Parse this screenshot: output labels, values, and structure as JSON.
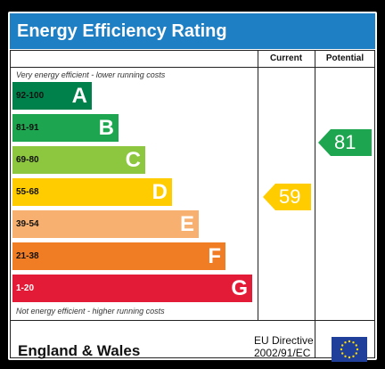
{
  "title": "Energy Efficiency Rating",
  "columns": {
    "current": "Current",
    "potential": "Potential"
  },
  "top_note": "Very energy efficient - lower running costs",
  "bottom_note": "Not energy efficient - higher running costs",
  "bands": [
    {
      "range": "92-100",
      "letter": "A",
      "color": "#00804a"
    },
    {
      "range": "81-91",
      "letter": "B",
      "color": "#1da54f"
    },
    {
      "range": "69-80",
      "letter": "C",
      "color": "#8dc63f"
    },
    {
      "range": "55-68",
      "letter": "D",
      "color": "#ffcc00"
    },
    {
      "range": "39-54",
      "letter": "E",
      "color": "#f7b06f"
    },
    {
      "range": "21-38",
      "letter": "F",
      "color": "#f07c23"
    },
    {
      "range": "1-20",
      "letter": "G",
      "color": "#e41b36"
    }
  ],
  "current": {
    "value": "59",
    "color": "#ffcc00"
  },
  "potential": {
    "value": "81",
    "color": "#1da54f"
  },
  "footer": {
    "region": "England & Wales",
    "directive_line1": "EU Directive",
    "directive_line2": "2002/91/EC"
  },
  "flag_icon": "eu-flag-icon"
}
